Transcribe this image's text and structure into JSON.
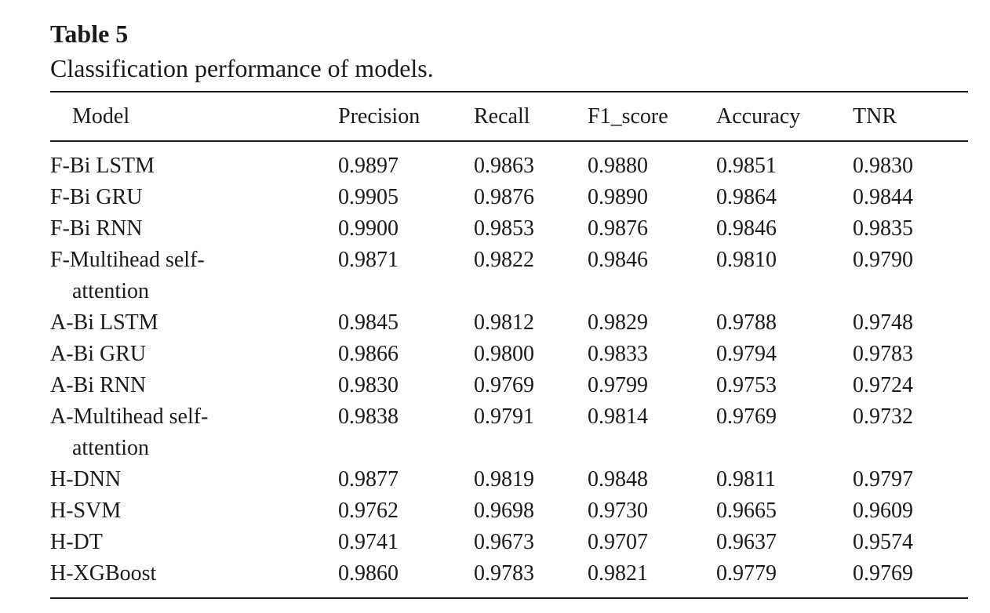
{
  "table": {
    "label": "Table 5",
    "caption": "Classification performance of models.",
    "columns": [
      "Model",
      "Precision",
      "Recall",
      "F1_score",
      "Accuracy",
      "TNR"
    ],
    "rows": [
      {
        "model": [
          "F-Bi LSTM"
        ],
        "precision": "0.9897",
        "recall": "0.9863",
        "f1": "0.9880",
        "accuracy": "0.9851",
        "tnr": "0.9830"
      },
      {
        "model": [
          "F-Bi GRU"
        ],
        "precision": "0.9905",
        "recall": "0.9876",
        "f1": "0.9890",
        "accuracy": "0.9864",
        "tnr": "0.9844"
      },
      {
        "model": [
          "F-Bi RNN"
        ],
        "precision": "0.9900",
        "recall": "0.9853",
        "f1": "0.9876",
        "accuracy": "0.9846",
        "tnr": "0.9835"
      },
      {
        "model": [
          "F-Multihead self-",
          "attention"
        ],
        "precision": "0.9871",
        "recall": "0.9822",
        "f1": "0.9846",
        "accuracy": "0.9810",
        "tnr": "0.9790"
      },
      {
        "model": [
          "A-Bi LSTM"
        ],
        "precision": "0.9845",
        "recall": "0.9812",
        "f1": "0.9829",
        "accuracy": "0.9788",
        "tnr": "0.9748"
      },
      {
        "model": [
          "A-Bi GRU"
        ],
        "precision": "0.9866",
        "recall": "0.9800",
        "f1": "0.9833",
        "accuracy": "0.9794",
        "tnr": "0.9783"
      },
      {
        "model": [
          "A-Bi RNN"
        ],
        "precision": "0.9830",
        "recall": "0.9769",
        "f1": "0.9799",
        "accuracy": "0.9753",
        "tnr": "0.9724"
      },
      {
        "model": [
          "A-Multihead self-",
          "attention"
        ],
        "precision": "0.9838",
        "recall": "0.9791",
        "f1": "0.9814",
        "accuracy": "0.9769",
        "tnr": "0.9732"
      },
      {
        "model": [
          "H-DNN"
        ],
        "precision": "0.9877",
        "recall": "0.9819",
        "f1": "0.9848",
        "accuracy": "0.9811",
        "tnr": "0.9797"
      },
      {
        "model": [
          "H-SVM"
        ],
        "precision": "0.9762",
        "recall": "0.9698",
        "f1": "0.9730",
        "accuracy": "0.9665",
        "tnr": "0.9609"
      },
      {
        "model": [
          "H-DT"
        ],
        "precision": "0.9741",
        "recall": "0.9673",
        "f1": "0.9707",
        "accuracy": "0.9637",
        "tnr": "0.9574"
      },
      {
        "model": [
          "H-XGBoost"
        ],
        "precision": "0.9860",
        "recall": "0.9783",
        "f1": "0.9821",
        "accuracy": "0.9779",
        "tnr": "0.9769"
      }
    ]
  }
}
